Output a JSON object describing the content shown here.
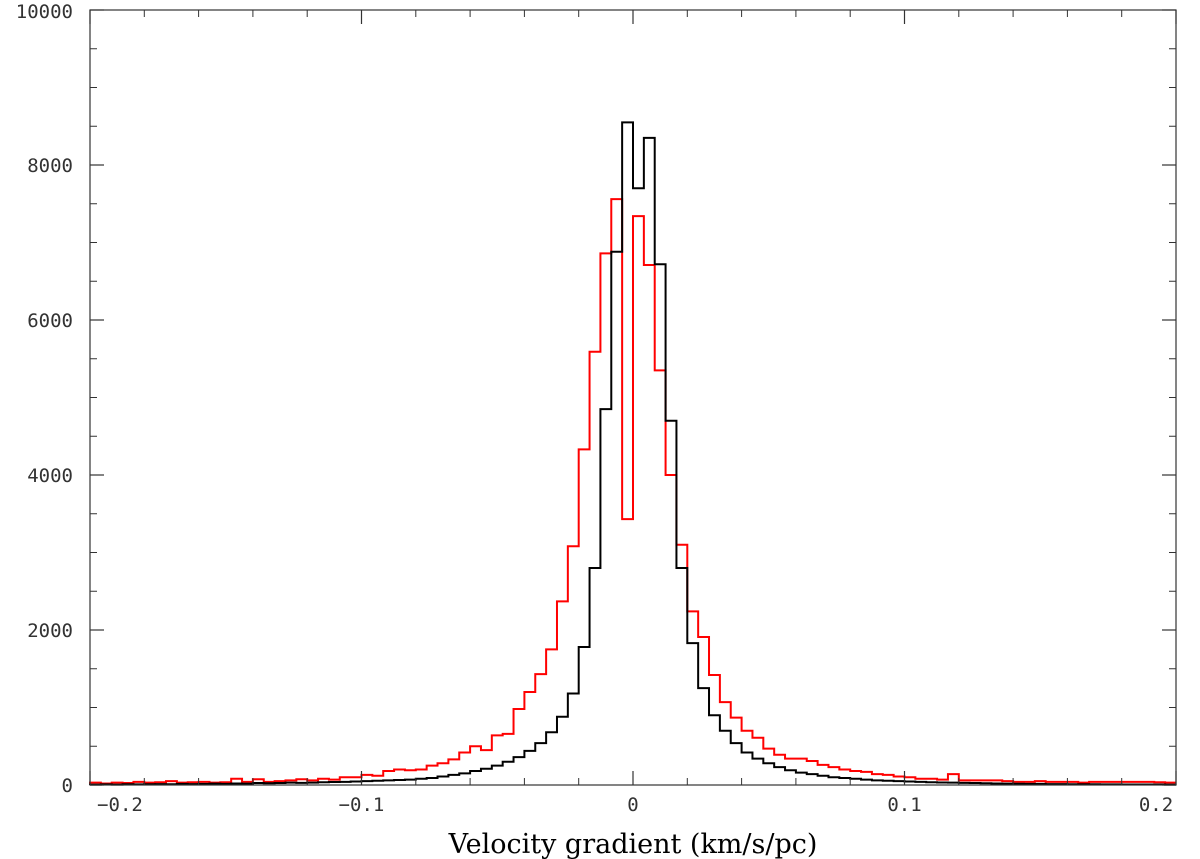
{
  "chart_data": {
    "type": "line",
    "drawstyle": "steps",
    "title": "",
    "xlabel": "Velocity gradient (km/s/pc)",
    "ylabel": "",
    "xlim": [
      -0.2,
      0.2
    ],
    "ylim": [
      0,
      10000
    ],
    "x_ticks": [
      -0.2,
      -0.1,
      0,
      0.1,
      0.2
    ],
    "x_tick_labels": [
      "−0.2",
      "−0.1",
      "0",
      "0.1",
      "0.2"
    ],
    "y_ticks": [
      0,
      2000,
      4000,
      6000,
      8000,
      10000
    ],
    "y_tick_labels": [
      "0",
      "2000",
      "4000",
      "6000",
      "8000",
      "10000"
    ],
    "grid": false,
    "legend": "none",
    "bin_width": 0.004,
    "bin_starts": [
      -0.2,
      -0.196,
      -0.192,
      -0.188,
      -0.184,
      -0.18,
      -0.176,
      -0.172,
      -0.168,
      -0.164,
      -0.16,
      -0.156,
      -0.152,
      -0.148,
      -0.144,
      -0.14,
      -0.136,
      -0.132,
      -0.128,
      -0.124,
      -0.12,
      -0.116,
      -0.112,
      -0.108,
      -0.104,
      -0.1,
      -0.096,
      -0.092,
      -0.088,
      -0.084,
      -0.08,
      -0.076,
      -0.072,
      -0.068,
      -0.064,
      -0.06,
      -0.056,
      -0.052,
      -0.048,
      -0.044,
      -0.04,
      -0.036,
      -0.032,
      -0.028,
      -0.024,
      -0.02,
      -0.016,
      -0.012,
      -0.008,
      -0.004,
      0.0,
      0.004,
      0.008,
      0.012,
      0.016,
      0.02,
      0.024,
      0.028,
      0.032,
      0.036,
      0.04,
      0.044,
      0.048,
      0.052,
      0.056,
      0.06,
      0.064,
      0.068,
      0.072,
      0.076,
      0.08,
      0.084,
      0.088,
      0.092,
      0.096,
      0.1,
      0.104,
      0.108,
      0.112,
      0.116,
      0.12,
      0.124,
      0.128,
      0.132,
      0.136,
      0.14,
      0.144,
      0.148,
      0.152,
      0.156,
      0.16,
      0.164,
      0.168,
      0.172,
      0.176,
      0.18,
      0.184,
      0.188,
      0.192,
      0.196
    ],
    "series": [
      {
        "color": "#000000",
        "values": [
          5,
          8,
          5,
          10,
          8,
          10,
          12,
          10,
          15,
          12,
          15,
          18,
          15,
          20,
          18,
          25,
          22,
          25,
          30,
          28,
          30,
          35,
          38,
          40,
          45,
          50,
          55,
          60,
          65,
          70,
          80,
          90,
          110,
          130,
          150,
          180,
          210,
          250,
          300,
          360,
          440,
          540,
          680,
          880,
          1180,
          1780,
          2800,
          4850,
          6880,
          8550,
          7700,
          8350,
          6720,
          4700,
          2800,
          1830,
          1250,
          900,
          700,
          540,
          420,
          340,
          280,
          230,
          190,
          160,
          140,
          120,
          100,
          90,
          80,
          70,
          60,
          55,
          50,
          45,
          40,
          35,
          32,
          30,
          28,
          25,
          22,
          20,
          18,
          16,
          15,
          14,
          12,
          11,
          10,
          10,
          9,
          8,
          8,
          7,
          7,
          6,
          6,
          5
        ]
      },
      {
        "color": "#ff0000",
        "values": [
          30,
          20,
          30,
          25,
          40,
          30,
          35,
          50,
          30,
          35,
          40,
          30,
          35,
          80,
          40,
          75,
          40,
          50,
          60,
          75,
          60,
          80,
          70,
          100,
          100,
          130,
          120,
          180,
          200,
          190,
          200,
          250,
          280,
          330,
          420,
          500,
          450,
          640,
          660,
          980,
          1200,
          1430,
          1750,
          2370,
          3080,
          4330,
          5590,
          6860,
          7560,
          3430,
          7340,
          6710,
          5350,
          4000,
          3100,
          2240,
          1910,
          1420,
          1070,
          870,
          700,
          610,
          470,
          390,
          340,
          340,
          310,
          260,
          230,
          200,
          180,
          170,
          140,
          130,
          110,
          100,
          80,
          80,
          70,
          140,
          60,
          60,
          60,
          60,
          50,
          40,
          40,
          50,
          40,
          40,
          40,
          30,
          40,
          40,
          40,
          40,
          40,
          40,
          35,
          30
        ]
      }
    ]
  }
}
